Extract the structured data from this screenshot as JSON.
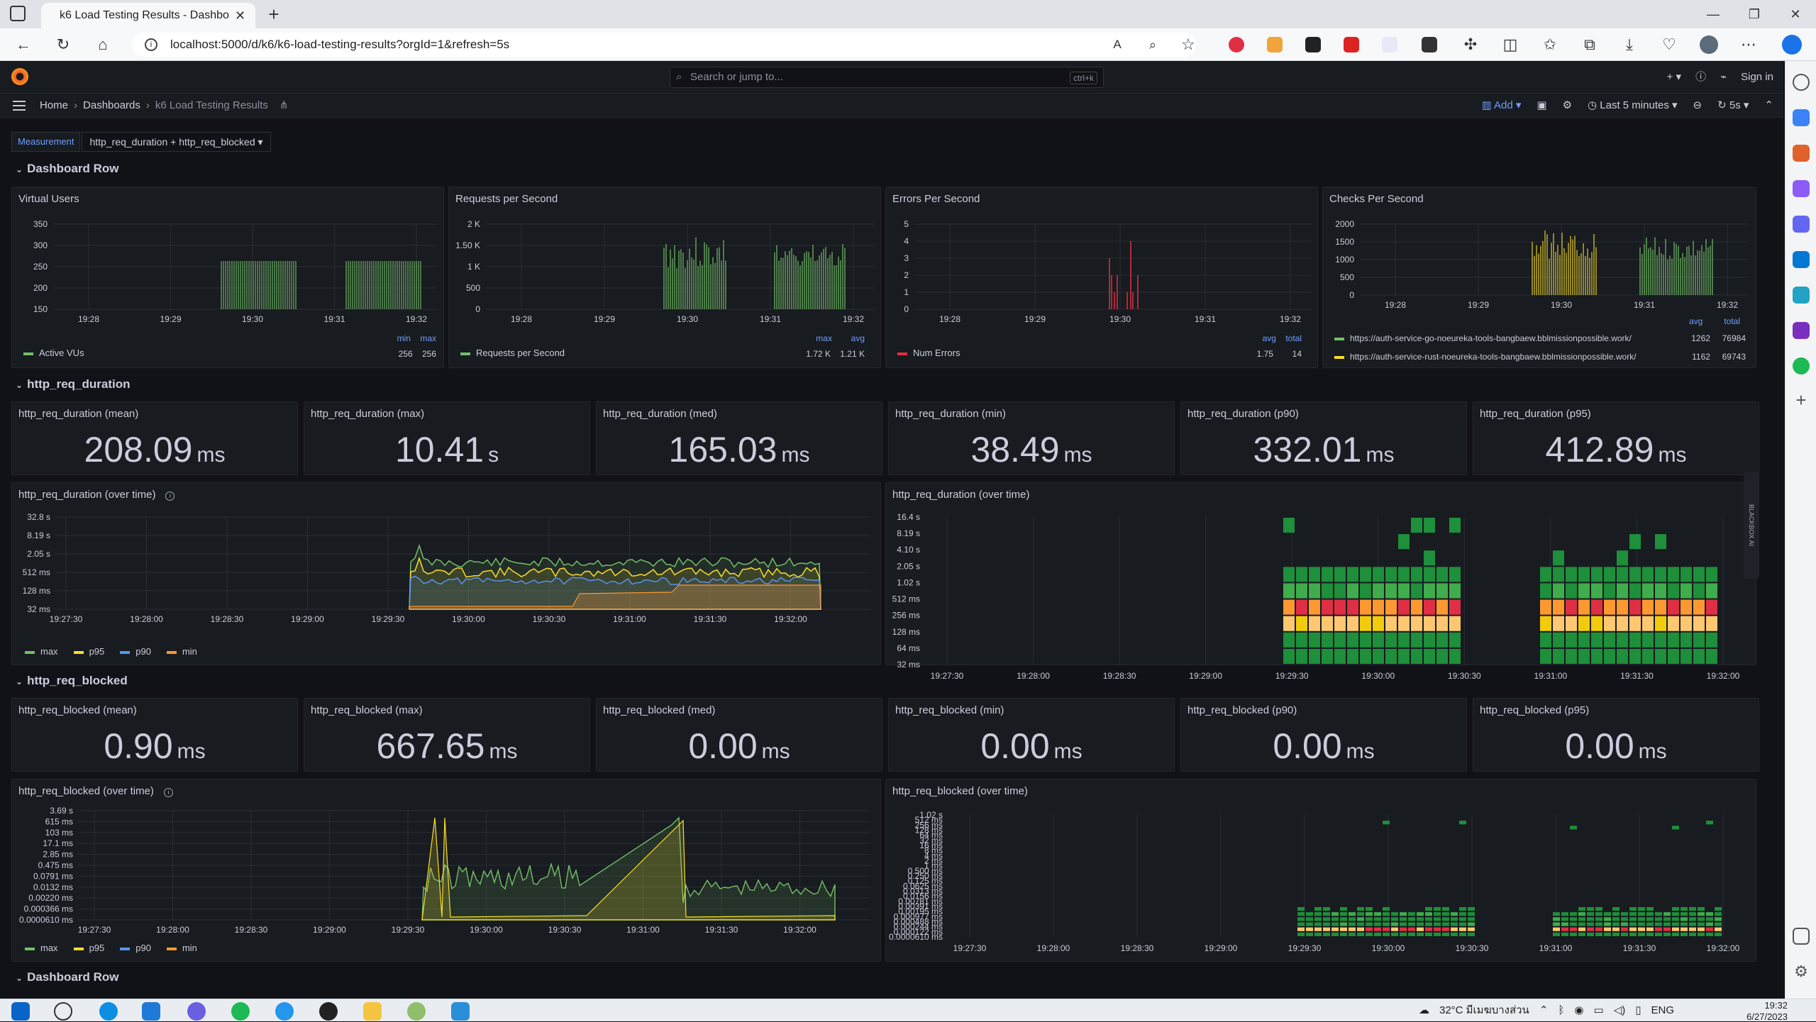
{
  "browser": {
    "tab_title": "k6 Load Testing Results - Dashbo",
    "url": "localhost:5000/d/k6/k6-load-testing-results?orgId=1&refresh=5s"
  },
  "grafana": {
    "search_placeholder": "Search or jump to...",
    "search_kbd": "ctrl+k",
    "sign_in": "Sign in",
    "breadcrumb": [
      "Home",
      "Dashboards",
      "k6 Load Testing Results"
    ],
    "add_label": "Add",
    "time_range": "Last 5 minutes",
    "refresh": "5s"
  },
  "variable": {
    "label": "Measurement",
    "value": "http_req_duration + http_req_blocked"
  },
  "rows": {
    "r1": "Dashboard Row",
    "r2": "http_req_duration",
    "r3": "http_req_blocked",
    "r4": "Dashboard Row"
  },
  "time_ticks": [
    "19:28",
    "19:29",
    "19:30",
    "19:31",
    "19:32"
  ],
  "time_ticks_fine": [
    "19:27:30",
    "19:28:00",
    "19:28:30",
    "19:29:00",
    "19:29:30",
    "19:30:00",
    "19:30:30",
    "19:31:00",
    "19:31:30",
    "19:32:00"
  ],
  "panels": {
    "vus": {
      "title": "Virtual Users",
      "legend": "Active VUs",
      "col1": "min",
      "col2": "max",
      "v1": "256",
      "v2": "256",
      "yticks": [
        "350",
        "300",
        "250",
        "200",
        "150"
      ],
      "color": "#73bf69"
    },
    "rps": {
      "title": "Requests per Second",
      "legend": "Requests per Second",
      "col1": "max",
      "col2": "avg",
      "v1": "1.72 K",
      "v2": "1.21 K",
      "yticks": [
        "2 K",
        "1.50 K",
        "1 K",
        "500",
        "0"
      ],
      "color": "#73bf69"
    },
    "eps": {
      "title": "Errors Per Second",
      "legend": "Num Errors",
      "col1": "avg",
      "col2": "total",
      "v1": "1.75",
      "v2": "14",
      "yticks": [
        "5",
        "4",
        "3",
        "2",
        "1",
        "0"
      ],
      "color": "#e02f44"
    },
    "cps": {
      "title": "Checks Per Second",
      "col1": "avg",
      "col2": "total",
      "yticks": [
        "2000",
        "1500",
        "1000",
        "500",
        "0"
      ],
      "series": [
        {
          "name": "https://auth-service-go-noeureka-tools-bangbaew.bblmissionpossible.work/",
          "avg": "1262",
          "total": "76984",
          "color": "#73bf69"
        },
        {
          "name": "https://auth-service-rust-noeureka-tools-bangbaew.bblmissionpossible.work/",
          "avg": "1162",
          "total": "69743",
          "color": "#fade2a"
        }
      ]
    }
  },
  "duration_stats": [
    {
      "title": "http_req_duration (mean)",
      "value": "208.09",
      "unit": "ms"
    },
    {
      "title": "http_req_duration (max)",
      "value": "10.41",
      "unit": "s"
    },
    {
      "title": "http_req_duration (med)",
      "value": "165.03",
      "unit": "ms"
    },
    {
      "title": "http_req_duration (min)",
      "value": "38.49",
      "unit": "ms"
    },
    {
      "title": "http_req_duration (p90)",
      "value": "332.01",
      "unit": "ms"
    },
    {
      "title": "http_req_duration (p95)",
      "value": "412.89",
      "unit": "ms"
    }
  ],
  "blocked_stats": [
    {
      "title": "http_req_blocked (mean)",
      "value": "0.90",
      "unit": "ms"
    },
    {
      "title": "http_req_blocked (max)",
      "value": "667.65",
      "unit": "ms"
    },
    {
      "title": "http_req_blocked (med)",
      "value": "0.00",
      "unit": "ms"
    },
    {
      "title": "http_req_blocked (min)",
      "value": "0.00",
      "unit": "ms"
    },
    {
      "title": "http_req_blocked (p90)",
      "value": "0.00",
      "unit": "ms"
    },
    {
      "title": "http_req_blocked (p95)",
      "value": "0.00",
      "unit": "ms"
    }
  ],
  "dur_time": {
    "title": "http_req_duration (over time)",
    "yticks": [
      "32.8 s",
      "8.19 s",
      "2.05 s",
      "512 ms",
      "128 ms",
      "32 ms"
    ],
    "legend": [
      {
        "name": "max",
        "color": "#73bf69"
      },
      {
        "name": "p95",
        "color": "#fade2a"
      },
      {
        "name": "p90",
        "color": "#5794f2"
      },
      {
        "name": "min",
        "color": "#ff9830"
      }
    ]
  },
  "dur_heat": {
    "title": "http_req_duration (over time)",
    "yticks": [
      "16.4 s",
      "8.19 s",
      "4.10 s",
      "2.05 s",
      "1.02 s",
      "512 ms",
      "256 ms",
      "128 ms",
      "64 ms",
      "32 ms"
    ]
  },
  "blk_time": {
    "title": "http_req_blocked (over time)",
    "yticks": [
      "3.69 s",
      "615 ms",
      "103 ms",
      "17.1 ms",
      "2.85 ms",
      "0.475 ms",
      "0.0791 ms",
      "0.0132 ms",
      "0.00220 ms",
      "0.000366 ms",
      "0.0000610 ms"
    ],
    "legend": [
      {
        "name": "max",
        "color": "#73bf69"
      },
      {
        "name": "p95",
        "color": "#fade2a"
      },
      {
        "name": "p90",
        "color": "#5794f2"
      },
      {
        "name": "min",
        "color": "#ff9830"
      }
    ]
  },
  "blk_heat": {
    "title": "http_req_blocked (over time)",
    "yticks": [
      "1.02 s",
      "512 ms",
      "256 ms",
      "128 ms",
      "64 ms",
      "32 ms",
      "16 ms",
      "8 ms",
      "4 ms",
      "2 ms",
      "1 ms",
      "0.500 ms",
      "0.250 ms",
      "0.125 ms",
      "0.0625 ms",
      "0.0313 ms",
      "0.0156 ms",
      "0.00781 ms",
      "0.00391 ms",
      "0.00195 ms",
      "0.000977 ms",
      "0.000488 ms",
      "0.000244 ms",
      "0.000122 ms",
      "0.0000610 ms"
    ]
  },
  "taskbar": {
    "weather": "32°C มีเมฆบางส่วน",
    "lang": "ENG",
    "time": "19:32",
    "date": "6/27/2023"
  },
  "side_label": "BLACKBOX AI"
}
